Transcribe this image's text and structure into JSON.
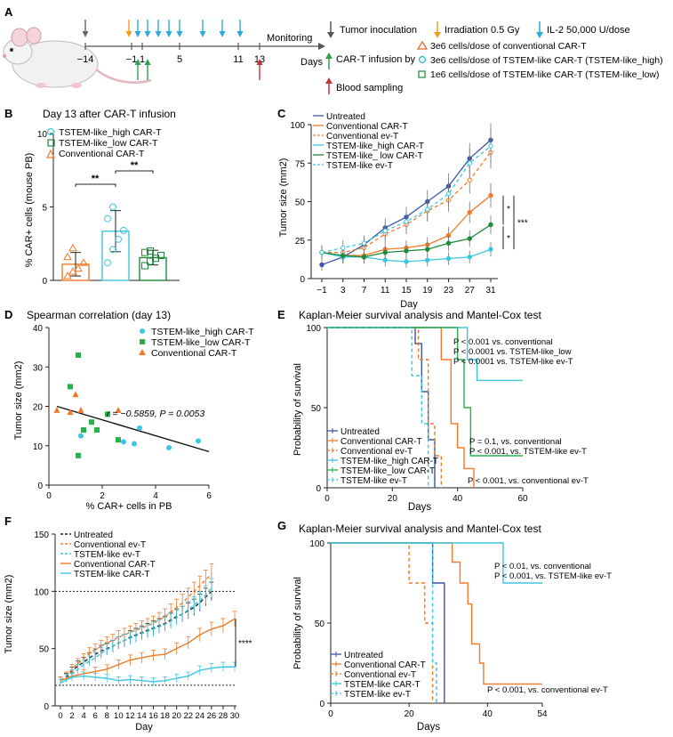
{
  "colors": {
    "untreated": "#3a56a6",
    "conv": "#f07a2a",
    "high": "#3cc6e0",
    "low": "#1d8a3a",
    "low_sq": "#26b24a",
    "black": "#222222",
    "grey": "#888888",
    "red": "#c8323c"
  },
  "panelA": {
    "letter": "A",
    "timeline_ticks": [
      "-14",
      "-1",
      "1",
      "5",
      "11",
      "13"
    ],
    "monitoring": "Monitoring",
    "days": "Days",
    "legend": {
      "tumor": "Tumor inoculation",
      "irrad": "Irradiation 0.5 Gy",
      "il2": "IL-2 50,000 U/dose",
      "cart": "CAR-T infusion by",
      "conv": "3e6 cells/dose of conventional CAR-T",
      "high": "3e6 cells/dose of TSTEM-like CAR-T (TSTEM-like_high)",
      "low": "1e6 cells/dose of TSTEM-like CAR-T (TSTEM-like_low)",
      "blood": "Blood sampling"
    }
  },
  "panelB": {
    "letter": "B",
    "title": "Day 13 after CAR-T infusion",
    "ylabel": "% CAR+ cells (mouse PB)",
    "legend": [
      "TSTEM-like_high CAR-T",
      "TSTEM-like_low CAR-T",
      "Conventional CAR-T"
    ],
    "sig": [
      "**",
      "**"
    ],
    "chart_data": {
      "type": "bar",
      "categories": [
        "Conventional CAR-T",
        "TSTEM-like_high CAR-T",
        "TSTEM-like_low CAR-T"
      ],
      "values": [
        1.1,
        3.35,
        1.55
      ],
      "sd": [
        0.8,
        1.4,
        0.5
      ],
      "ylim": [
        0,
        10
      ],
      "yticks": [
        "0",
        "5",
        "10"
      ],
      "points": [
        [
          0.3,
          0.6,
          0.8,
          1.2,
          1.6,
          2.2
        ],
        [
          1.2,
          2.1,
          2.8,
          3.4,
          4.2,
          5.0
        ],
        [
          1.0,
          1.3,
          1.5,
          1.7,
          1.9,
          2.0
        ]
      ]
    }
  },
  "panelC": {
    "letter": "C",
    "ylabel": "Tumor size (mm2)",
    "xlabel": "Day",
    "sig": [
      "*",
      "***",
      "*"
    ],
    "chart_data": {
      "type": "line",
      "x": [
        "-1",
        "3",
        "7",
        "11",
        "15",
        "19",
        "23",
        "27",
        "31"
      ],
      "ylim": [
        0,
        100
      ],
      "yticks": [
        "0",
        "25",
        "50",
        "75",
        "100"
      ],
      "series": [
        {
          "name": "Untreated",
          "color": "untreated",
          "dash": false,
          "values": [
            9,
            14,
            22,
            33,
            40,
            50,
            60,
            78,
            90
          ]
        },
        {
          "name": "Conventional CAR-T",
          "color": "conv",
          "dash": false,
          "values": [
            17,
            15,
            15,
            19,
            20,
            22,
            28,
            43,
            54
          ]
        },
        {
          "name": "Conventional ev-T",
          "color": "conv",
          "dash": true,
          "values": [
            17,
            17,
            20,
            29,
            35,
            44,
            51,
            64,
            82
          ]
        },
        {
          "name": "TSTEM-like_high CAR-T",
          "color": "high",
          "dash": false,
          "values": [
            17,
            14,
            14,
            12,
            11,
            12,
            13,
            14,
            19
          ]
        },
        {
          "name": "TSTEM-like_ low CAR-T",
          "color": "low",
          "dash": false,
          "values": [
            17,
            15,
            14,
            17,
            18,
            19,
            23,
            26,
            35
          ]
        },
        {
          "name": "TSTEM-like ev-T",
          "color": "high",
          "dash": true,
          "values": [
            17,
            20,
            23,
            31,
            37,
            45,
            55,
            75,
            86
          ]
        }
      ]
    }
  },
  "panelD": {
    "letter": "D",
    "title": "Spearman correlation (day 13)",
    "ylabel": "Tumor size (mm2)",
    "xlabel": "% CAR+ cells in PB",
    "stat": "r = −0.5859, P = 0.0053",
    "legend": [
      "TSTEM-like_high CAR-T",
      "TSTEM-like_low CAR-T",
      "Conventional CAR-T"
    ],
    "chart_data": {
      "type": "scatter",
      "xlim": [
        0,
        6
      ],
      "ylim": [
        0,
        40
      ],
      "xticks": [
        "0",
        "2",
        "4",
        "6"
      ],
      "yticks": [
        "0",
        "10",
        "20",
        "30",
        "40"
      ],
      "high": [
        [
          1.2,
          12.5
        ],
        [
          2.8,
          11
        ],
        [
          3.2,
          10.5
        ],
        [
          3.4,
          14.5
        ],
        [
          4.5,
          9.5
        ],
        [
          5.6,
          11.2
        ]
      ],
      "low": [
        [
          0.8,
          25
        ],
        [
          1.1,
          33
        ],
        [
          1.1,
          7.5
        ],
        [
          1.3,
          14
        ],
        [
          1.6,
          16
        ],
        [
          1.8,
          14
        ],
        [
          2.2,
          18
        ],
        [
          2.6,
          11.5
        ]
      ],
      "conv": [
        [
          0.3,
          19
        ],
        [
          0.8,
          18.5
        ],
        [
          1.0,
          23
        ],
        [
          1.2,
          19
        ],
        [
          2.6,
          19
        ]
      ],
      "fit": [
        [
          0.3,
          20
        ],
        [
          6.0,
          8.5
        ]
      ]
    }
  },
  "panelE": {
    "letter": "E",
    "title": "Kaplan-Meier survival analysis and Mantel-Cox test",
    "ylabel": "Probability of survival",
    "xlabel": "Days",
    "ann1": [
      "P < 0.001 vs. conventional",
      "P < 0.0001 vs. TSTEM-like_low",
      "P < 0.0001 vs. TSTEM-like ev-T"
    ],
    "ann2": [
      "P = 0.1, vs. conventional",
      "P < 0.001, vs. TSTEM-like ev-T"
    ],
    "ann3": "P < 0.001, vs. conventional ev-T",
    "legend": [
      "Untreated",
      "Conventional CAR-T",
      "Conventional ev-T",
      "TSTEM-like_high CAR-T",
      "TSTEM-like_low CAR-T",
      "TSTEM-like ev-T"
    ],
    "chart_data": {
      "type": "line",
      "xlim": [
        0,
        60
      ],
      "ylim": [
        0,
        100
      ],
      "xticks": [
        "0",
        "20",
        "40",
        "60"
      ],
      "yticks": [
        "0",
        "50",
        "100"
      ],
      "series": [
        {
          "name": "Untreated",
          "color": "untreated",
          "dash": false,
          "steps": [
            [
              0,
              100
            ],
            [
              27,
              100
            ],
            [
              27,
              90
            ],
            [
              29,
              90
            ],
            [
              29,
              60
            ],
            [
              31,
              60
            ],
            [
              31,
              30
            ],
            [
              33,
              30
            ],
            [
              33,
              0
            ]
          ]
        },
        {
          "name": "Conventional CAR-T",
          "color": "conv",
          "dash": false,
          "steps": [
            [
              0,
              100
            ],
            [
              35,
              100
            ],
            [
              35,
              80
            ],
            [
              38,
              80
            ],
            [
              38,
              40
            ],
            [
              40,
              40
            ],
            [
              40,
              25
            ],
            [
              42,
              25
            ],
            [
              42,
              12
            ],
            [
              45,
              12
            ],
            [
              45,
              0
            ]
          ]
        },
        {
          "name": "Conventional ev-T",
          "color": "conv",
          "dash": true,
          "steps": [
            [
              0,
              100
            ],
            [
              28,
              100
            ],
            [
              28,
              80
            ],
            [
              31,
              80
            ],
            [
              31,
              40
            ],
            [
              33,
              40
            ],
            [
              33,
              20
            ],
            [
              35,
              20
            ],
            [
              35,
              0
            ]
          ]
        },
        {
          "name": "TSTEM-like_high CAR-T",
          "color": "high",
          "dash": false,
          "steps": [
            [
              0,
              100
            ],
            [
              43,
              100
            ],
            [
              43,
              80
            ],
            [
              46,
              80
            ],
            [
              46,
              67
            ],
            [
              60,
              67
            ]
          ]
        },
        {
          "name": "TSTEM-like_low CAR-T",
          "color": "low_sq",
          "dash": false,
          "steps": [
            [
              0,
              100
            ],
            [
              40,
              100
            ],
            [
              40,
              80
            ],
            [
              42,
              80
            ],
            [
              42,
              50
            ],
            [
              44,
              50
            ],
            [
              44,
              20
            ],
            [
              60,
              20
            ]
          ]
        },
        {
          "name": "TSTEM-like ev-T",
          "color": "high",
          "dash": true,
          "steps": [
            [
              0,
              100
            ],
            [
              26,
              100
            ],
            [
              26,
              70
            ],
            [
              29,
              70
            ],
            [
              29,
              40
            ],
            [
              31,
              40
            ],
            [
              31,
              0
            ]
          ]
        }
      ]
    }
  },
  "panelF": {
    "letter": "F",
    "ylabel": "Tumor size (mm2)",
    "xlabel": "Day",
    "sig": "****",
    "legend": [
      "Untreated",
      "Conventional ev-T",
      "TSTEM-like ev-T",
      "Conventional CAR-T",
      "TSTEM-like CAR-T"
    ],
    "chart_data": {
      "type": "line",
      "xlim": [
        0,
        30
      ],
      "ylim": [
        0,
        150
      ],
      "xticks": [
        "0",
        "2",
        "4",
        "6",
        "8",
        "10",
        "12",
        "14",
        "16",
        "18",
        "20",
        "22",
        "24",
        "26",
        "28",
        "30"
      ],
      "yticks": [
        "0",
        "50",
        "100",
        "150"
      ],
      "hlines": [
        100,
        18
      ],
      "series": [
        {
          "name": "Untreated",
          "color": "black",
          "dash": true,
          "x": [
            0,
            1,
            2,
            3,
            4,
            5,
            6,
            7,
            8,
            9,
            10,
            11,
            12,
            13,
            14,
            15,
            16,
            17,
            18,
            19,
            20,
            21,
            22,
            23,
            24,
            25,
            26
          ],
          "values": [
            22,
            25,
            30,
            35,
            38,
            42,
            45,
            48,
            50,
            52,
            55,
            57,
            60,
            62,
            64,
            66,
            68,
            70,
            72,
            75,
            78,
            80,
            83,
            86,
            90,
            95,
            100
          ]
        },
        {
          "name": "Conventional ev-T",
          "color": "conv",
          "dash": true,
          "x": [
            0,
            1,
            2,
            3,
            4,
            5,
            6,
            7,
            8,
            9,
            10,
            11,
            12,
            13,
            14,
            15,
            16,
            17,
            18,
            19,
            20,
            21,
            22,
            23,
            24,
            25,
            26
          ],
          "values": [
            22,
            26,
            32,
            37,
            41,
            46,
            49,
            52,
            55,
            57,
            60,
            62,
            64,
            66,
            68,
            70,
            72,
            75,
            78,
            82,
            86,
            90,
            95,
            100,
            105,
            110,
            115
          ]
        },
        {
          "name": "TSTEM-like ev-T",
          "color": "high",
          "dash": true,
          "x": [
            0,
            1,
            2,
            3,
            4,
            5,
            6,
            7,
            8,
            9,
            10,
            11,
            12,
            13,
            14,
            15,
            16,
            17,
            18,
            19,
            20,
            21,
            22,
            23,
            24,
            25,
            26
          ],
          "values": [
            22,
            24,
            28,
            32,
            36,
            39,
            42,
            46,
            49,
            52,
            55,
            57,
            59,
            61,
            63,
            65,
            67,
            69,
            71,
            74,
            77,
            80,
            84,
            88,
            92,
            97,
            103
          ]
        },
        {
          "name": "Conventional CAR-T",
          "color": "conv",
          "dash": false,
          "x": [
            0,
            2,
            4,
            6,
            8,
            10,
            12,
            14,
            16,
            18,
            20,
            22,
            24,
            26,
            28,
            30
          ],
          "values": [
            22,
            26,
            28,
            30,
            32,
            36,
            40,
            42,
            44,
            45,
            50,
            55,
            62,
            67,
            70,
            76
          ]
        },
        {
          "name": "TSTEM-like CAR-T",
          "color": "high",
          "dash": false,
          "x": [
            0,
            2,
            4,
            6,
            8,
            10,
            12,
            14,
            16,
            18,
            20,
            22,
            24,
            26,
            28,
            30
          ],
          "values": [
            20,
            25,
            26,
            25,
            24,
            22,
            23,
            22,
            21,
            22,
            24,
            26,
            31,
            33,
            34,
            34
          ]
        }
      ]
    }
  },
  "panelG": {
    "letter": "G",
    "title": "Kaplan-Meier survival analysis and Mantel-Cox test",
    "ylabel": "Probability of survival",
    "xlabel": "Days",
    "ann1": [
      "P < 0.01, vs. conventional",
      "P < 0.001, vs. TSTEM-like ev-T"
    ],
    "ann2": "P < 0.001, vs. conventional ev-T",
    "legend": [
      "Untreated",
      "Conventional CAR-T",
      "Conventional ev-T",
      "TSTEM-like CAR-T",
      "TSTEM-like ev-T"
    ],
    "chart_data": {
      "type": "line",
      "xlim": [
        0,
        54
      ],
      "ylim": [
        0,
        100
      ],
      "xticks": [
        "0",
        "20",
        "40",
        "54"
      ],
      "yticks": [
        "0",
        "50",
        "100"
      ],
      "series": [
        {
          "name": "Untreated",
          "color": "untreated",
          "dash": false,
          "steps": [
            [
              0,
              100
            ],
            [
              26,
              100
            ],
            [
              26,
              75
            ],
            [
              29,
              75
            ],
            [
              29,
              0
            ]
          ]
        },
        {
          "name": "Conventional CAR-T",
          "color": "conv",
          "dash": false,
          "steps": [
            [
              0,
              100
            ],
            [
              31,
              100
            ],
            [
              31,
              88
            ],
            [
              33,
              88
            ],
            [
              33,
              75
            ],
            [
              35,
              75
            ],
            [
              35,
              62
            ],
            [
              36,
              62
            ],
            [
              36,
              37
            ],
            [
              38,
              37
            ],
            [
              38,
              25
            ],
            [
              39,
              25
            ],
            [
              39,
              12
            ],
            [
              54,
              12
            ]
          ]
        },
        {
          "name": "Conventional ev-T",
          "color": "conv",
          "dash": true,
          "steps": [
            [
              0,
              100
            ],
            [
              20,
              100
            ],
            [
              20,
              75
            ],
            [
              24,
              75
            ],
            [
              24,
              50
            ],
            [
              26,
              50
            ],
            [
              26,
              0
            ]
          ]
        },
        {
          "name": "TSTEM-like CAR-T",
          "color": "high",
          "dash": false,
          "steps": [
            [
              0,
              100
            ],
            [
              44,
              100
            ],
            [
              44,
              75
            ],
            [
              54,
              75
            ]
          ]
        },
        {
          "name": "TSTEM-like ev-T",
          "color": "high",
          "dash": true,
          "steps": [
            [
              0,
              100
            ],
            [
              26,
              100
            ],
            [
              26,
              25
            ],
            [
              27,
              25
            ],
            [
              27,
              0
            ]
          ]
        }
      ]
    }
  }
}
